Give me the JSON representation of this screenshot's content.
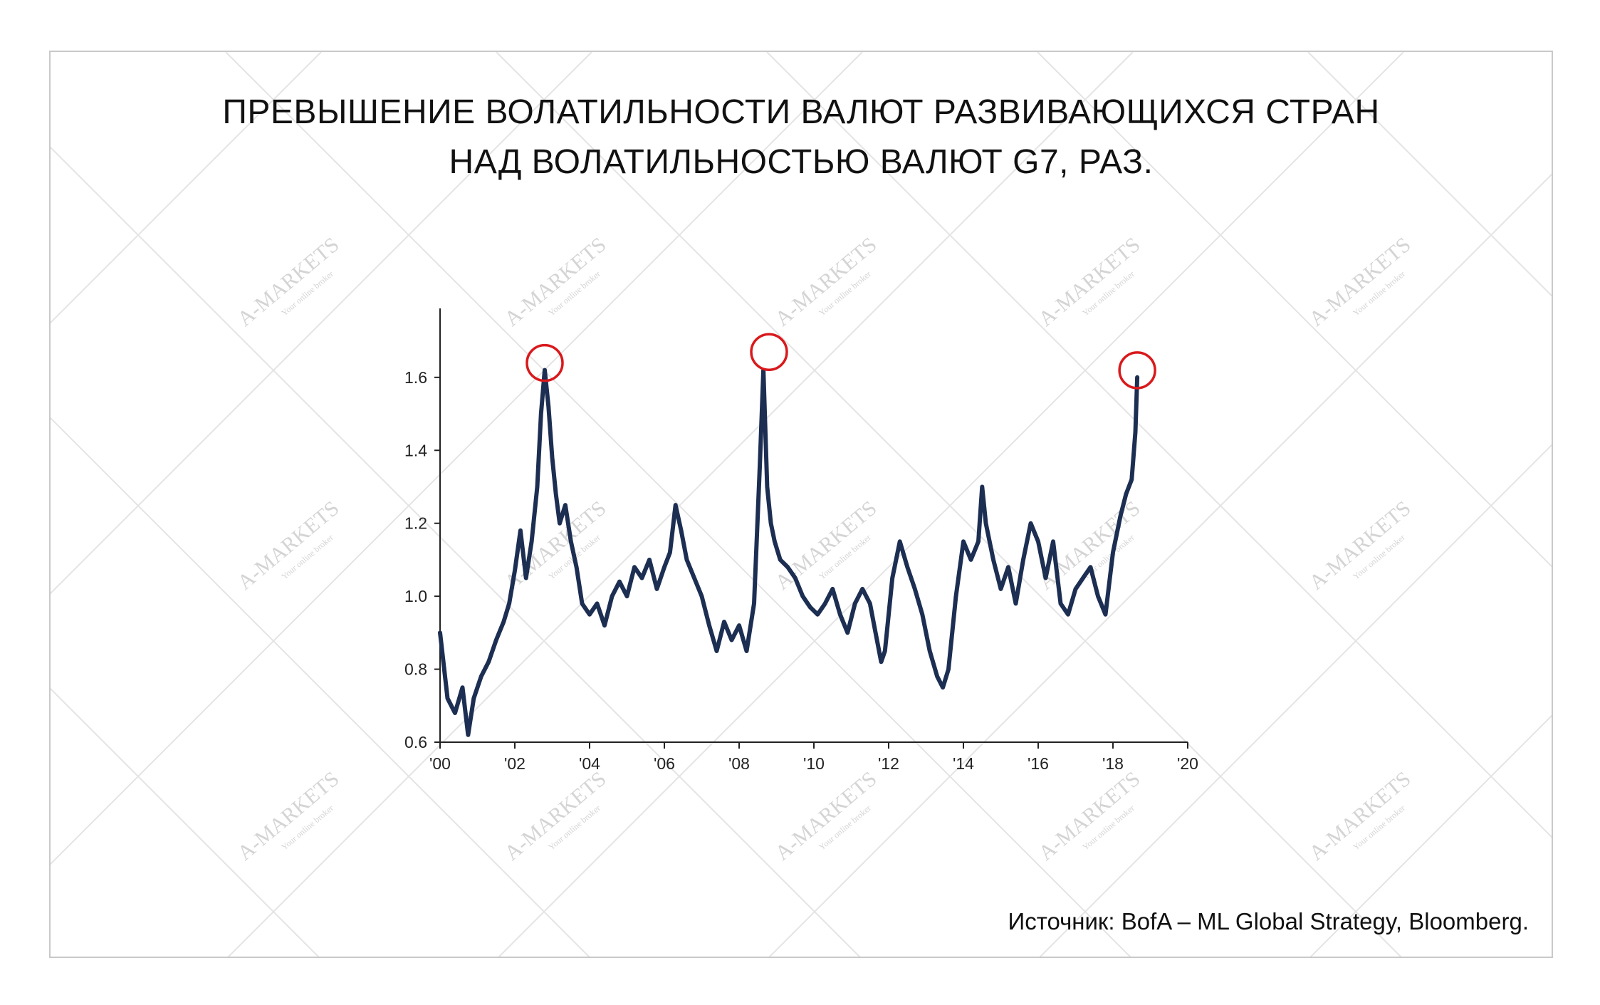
{
  "title": {
    "line1": "ПРЕВЫШЕНИЕ ВОЛАТИЛЬНОСТИ ВАЛЮТ РАЗВИВАЮЩИХСЯ СТРАН",
    "line2": "НАД ВОЛАТИЛЬНОСТЬЮ ВАЛЮТ G7, РАЗ."
  },
  "source": "Источник: BofA – ML Global Strategy, Bloomberg.",
  "watermark": {
    "brand": "A-MARKETS",
    "tagline": "Your online broker",
    "color": "#d4d4d4"
  },
  "colors": {
    "line": "#1c2e52",
    "highlight": "#d9191c",
    "axis": "#222222"
  },
  "chart_data": {
    "type": "line",
    "x_tick_labels": [
      "'00",
      "'02",
      "'04",
      "'06",
      "'08",
      "'10",
      "'12",
      "'14",
      "'16",
      "'18",
      "'20"
    ],
    "x_ticks": [
      2000,
      2002,
      2004,
      2006,
      2008,
      2010,
      2012,
      2014,
      2016,
      2018,
      2020
    ],
    "y_tick_labels": [
      "0.6",
      "0.8",
      "1.0",
      "1.2",
      "1.4",
      "1.6"
    ],
    "y_ticks": [
      0.6,
      0.8,
      1.0,
      1.2,
      1.4,
      1.6
    ],
    "xlim": [
      2000,
      2020
    ],
    "ylim": [
      0.6,
      1.75
    ],
    "series": [
      {
        "x": [
          2000.0,
          2000.2,
          2000.4,
          2000.6,
          2000.75,
          2000.9,
          2001.1,
          2001.3,
          2001.5,
          2001.7,
          2001.85,
          2002.0,
          2002.15,
          2002.3,
          2002.45,
          2002.6,
          2002.7,
          2002.8,
          2002.9,
          2003.0,
          2003.1,
          2003.2,
          2003.35,
          2003.5,
          2003.65,
          2003.8,
          2004.0,
          2004.2,
          2004.4,
          2004.6,
          2004.8,
          2005.0,
          2005.2,
          2005.4,
          2005.6,
          2005.8,
          2006.0,
          2006.15,
          2006.3,
          2006.45,
          2006.6,
          2006.8,
          2007.0,
          2007.2,
          2007.4,
          2007.6,
          2007.8,
          2008.0,
          2008.2,
          2008.4,
          2008.55,
          2008.65,
          2008.75,
          2008.85,
          2008.95,
          2009.1,
          2009.3,
          2009.5,
          2009.7,
          2009.9,
          2010.1,
          2010.3,
          2010.5,
          2010.7,
          2010.9,
          2011.1,
          2011.3,
          2011.5,
          2011.65,
          2011.8,
          2011.9,
          2012.1,
          2012.3,
          2012.5,
          2012.7,
          2012.9,
          2013.1,
          2013.3,
          2013.45,
          2013.6,
          2013.8,
          2014.0,
          2014.2,
          2014.4,
          2014.5,
          2014.6,
          2014.8,
          2015.0,
          2015.2,
          2015.4,
          2015.6,
          2015.8,
          2016.0,
          2016.2,
          2016.4,
          2016.6,
          2016.8,
          2017.0,
          2017.2,
          2017.4,
          2017.6,
          2017.8,
          2018.0,
          2018.2,
          2018.35,
          2018.5,
          2018.6,
          2018.65
        ],
        "values": [
          0.9,
          0.72,
          0.68,
          0.75,
          0.62,
          0.72,
          0.78,
          0.82,
          0.88,
          0.93,
          0.98,
          1.07,
          1.18,
          1.05,
          1.15,
          1.3,
          1.5,
          1.62,
          1.52,
          1.38,
          1.28,
          1.2,
          1.25,
          1.15,
          1.08,
          0.98,
          0.95,
          0.98,
          0.92,
          1.0,
          1.04,
          1.0,
          1.08,
          1.05,
          1.1,
          1.02,
          1.08,
          1.12,
          1.25,
          1.18,
          1.1,
          1.05,
          1.0,
          0.92,
          0.85,
          0.93,
          0.88,
          0.92,
          0.85,
          0.98,
          1.35,
          1.62,
          1.3,
          1.2,
          1.15,
          1.1,
          1.08,
          1.05,
          1.0,
          0.97,
          0.95,
          0.98,
          1.02,
          0.95,
          0.9,
          0.98,
          1.02,
          0.98,
          0.9,
          0.82,
          0.85,
          1.05,
          1.15,
          1.08,
          1.02,
          0.95,
          0.85,
          0.78,
          0.75,
          0.8,
          1.0,
          1.15,
          1.1,
          1.15,
          1.3,
          1.2,
          1.1,
          1.02,
          1.08,
          0.98,
          1.1,
          1.2,
          1.15,
          1.05,
          1.15,
          0.98,
          0.95,
          1.02,
          1.05,
          1.08,
          1.0,
          0.95,
          1.12,
          1.22,
          1.28,
          1.32,
          1.45,
          1.6
        ]
      }
    ],
    "highlighted_peaks": [
      {
        "x": 2002.8,
        "y": 1.62
      },
      {
        "x": 2008.8,
        "y": 1.65
      },
      {
        "x": 2018.65,
        "y": 1.6
      }
    ]
  }
}
